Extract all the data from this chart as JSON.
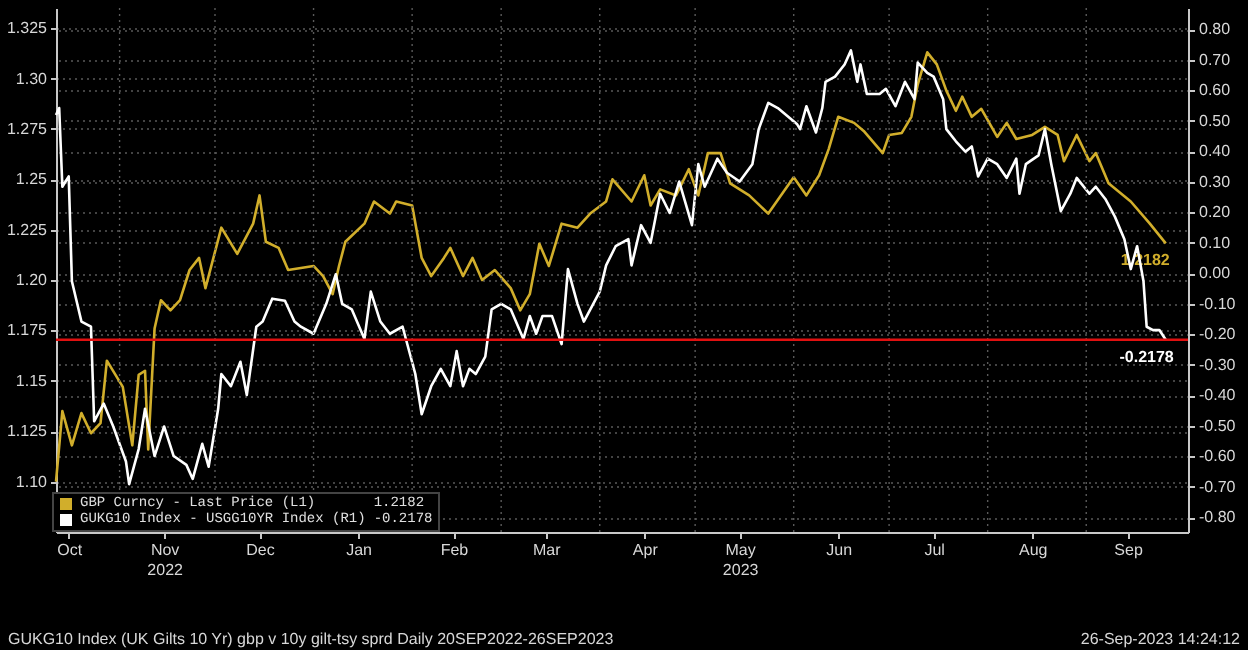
{
  "chart_data": {
    "type": "line",
    "xlim": [
      "2022-10-12",
      "2023-10-03"
    ],
    "xticks": [
      {
        "value": "2022-10-16",
        "label": "Oct"
      },
      {
        "value": "2022-11-01",
        "label": null
      },
      {
        "value": "2022-11-15",
        "label": "Nov\n2022"
      },
      {
        "value": "2022-12-01",
        "label": null
      },
      {
        "value": "2022-12-15",
        "label": "Dec"
      },
      {
        "value": "2023-01-01",
        "label": null
      },
      {
        "value": "2023-01-15",
        "label": "Jan"
      },
      {
        "value": "2023-02-01",
        "label": null
      },
      {
        "value": "2023-02-14",
        "label": "Feb"
      },
      {
        "value": "2023-03-01",
        "label": null
      },
      {
        "value": "2023-03-15",
        "label": "Mar"
      },
      {
        "value": "2023-04-01",
        "label": null
      },
      {
        "value": "2023-04-15",
        "label": "Apr"
      },
      {
        "value": "2023-05-01",
        "label": null
      },
      {
        "value": "2023-05-15",
        "label": "May\n2023"
      },
      {
        "value": "2023-06-01",
        "label": null
      },
      {
        "value": "2023-06-15",
        "label": "Jun"
      },
      {
        "value": "2023-07-01",
        "label": null
      },
      {
        "value": "2023-07-15",
        "label": "Jul"
      },
      {
        "value": "2023-08-01",
        "label": null
      },
      {
        "value": "2023-08-15",
        "label": "Aug"
      },
      {
        "value": "2023-09-01",
        "label": null
      },
      {
        "value": "2023-09-14",
        "label": "Sep"
      }
    ],
    "ylim": [
      1.075,
      1.335
    ],
    "yticks": [
      {
        "value": 1.1,
        "label": "1.10"
      },
      1.125,
      1.15,
      1.175,
      {
        "value": 1.2,
        "label": "1.20"
      },
      1.225,
      1.25,
      1.275,
      {
        "value": 1.3,
        "label": "1.30"
      },
      1.325
    ],
    "y2lim": [
      -0.848,
      0.87
    ],
    "y2ticks": [
      {
        "value": -0.8,
        "label": "-0.80"
      },
      {
        "value": -0.7,
        "label": "-0.70"
      },
      {
        "value": -0.6,
        "label": "-0.60"
      },
      {
        "value": -0.5,
        "label": "-0.50"
      },
      {
        "value": -0.4,
        "label": "-0.40"
      },
      {
        "value": -0.3,
        "label": "-0.30"
      },
      {
        "value": -0.2,
        "label": "-0.20"
      },
      {
        "value": -0.1,
        "label": "-0.10"
      },
      {
        "value": 0,
        "label": "0.00"
      },
      {
        "value": 0.1,
        "label": "0.10"
      },
      {
        "value": 0.2,
        "label": "0.20"
      },
      {
        "value": 0.3,
        "label": "0.30"
      },
      {
        "value": 0.4,
        "label": "0.40"
      },
      {
        "value": 0.5,
        "label": "0.50"
      },
      {
        "value": 0.6,
        "label": "0.60"
      },
      {
        "value": 0.7,
        "label": "0.70"
      },
      {
        "value": 0.8,
        "label": "0.80"
      }
    ],
    "grid": true,
    "legend": "bottom left",
    "ref_lines": [
      {
        "axis": "y2",
        "value": -0.2178,
        "color": "#e01010"
      }
    ],
    "annotations": [
      "GUKG10 Index (UK Gilts 10 Yr) gbp v 10y gilt-tsy sprd  Daily 20SEP2022-26SEP2023",
      "26-Sep-2023 14:24:12"
    ],
    "series": [
      {
        "name": "GBP Curncy - Last Price (L1)",
        "color": "#d1ae2b",
        "axis": "y",
        "x": [
          "2022-10-12",
          "2022-10-14",
          "2022-10-17",
          "2022-10-20",
          "2022-10-23",
          "2022-10-26",
          "2022-10-28",
          "2022-11-02",
          "2022-11-05",
          "2022-11-07",
          "2022-11-09",
          "2022-11-10",
          "2022-11-12",
          "2022-11-14",
          "2022-11-17",
          "2022-11-20",
          "2022-11-23",
          "2022-11-26",
          "2022-11-28",
          "2022-12-03",
          "2022-12-08",
          "2022-12-13",
          "2022-12-15",
          "2022-12-17",
          "2022-12-21",
          "2022-12-24",
          "2023-01-01",
          "2023-01-04",
          "2023-01-07",
          "2023-01-09",
          "2023-01-11",
          "2023-01-17",
          "2023-01-20",
          "2023-01-25",
          "2023-01-27",
          "2023-02-01",
          "2023-02-04",
          "2023-02-07",
          "2023-02-11",
          "2023-02-13",
          "2023-02-17",
          "2023-02-20",
          "2023-02-23",
          "2023-02-27",
          "2023-03-04",
          "2023-03-07",
          "2023-03-10",
          "2023-03-13",
          "2023-03-16",
          "2023-03-20",
          "2023-03-25",
          "2023-03-29",
          "2023-04-03",
          "2023-04-05",
          "2023-04-11",
          "2023-04-15",
          "2023-04-17",
          "2023-04-20",
          "2023-04-25",
          "2023-04-29",
          "2023-05-02",
          "2023-05-05",
          "2023-05-09",
          "2023-05-12",
          "2023-05-18",
          "2023-05-24",
          "2023-06-01",
          "2023-06-05",
          "2023-06-09",
          "2023-06-12",
          "2023-06-15",
          "2023-06-20",
          "2023-06-23",
          "2023-06-29",
          "2023-07-01",
          "2023-07-05",
          "2023-07-08",
          "2023-07-10",
          "2023-07-13",
          "2023-07-16",
          "2023-07-19",
          "2023-07-22",
          "2023-07-24",
          "2023-07-27",
          "2023-07-30",
          "2023-08-04",
          "2023-08-07",
          "2023-08-10",
          "2023-08-15",
          "2023-08-19",
          "2023-08-23",
          "2023-08-25",
          "2023-08-29",
          "2023-09-02",
          "2023-09-04",
          "2023-09-08",
          "2023-09-15",
          "2023-09-21",
          "2023-09-26"
        ],
        "values": [
          1.1,
          1.135,
          1.118,
          1.134,
          1.124,
          1.129,
          1.16,
          1.147,
          1.118,
          1.153,
          1.155,
          1.116,
          1.176,
          1.19,
          1.185,
          1.19,
          1.205,
          1.211,
          1.196,
          1.226,
          1.213,
          1.228,
          1.242,
          1.219,
          1.216,
          1.205,
          1.207,
          1.202,
          1.193,
          1.207,
          1.219,
          1.228,
          1.239,
          1.233,
          1.239,
          1.237,
          1.211,
          1.202,
          1.211,
          1.216,
          1.202,
          1.211,
          1.2,
          1.205,
          1.196,
          1.185,
          1.193,
          1.218,
          1.207,
          1.228,
          1.226,
          1.233,
          1.239,
          1.25,
          1.239,
          1.252,
          1.237,
          1.245,
          1.242,
          1.255,
          1.242,
          1.263,
          1.263,
          1.248,
          1.242,
          1.233,
          1.251,
          1.242,
          1.252,
          1.265,
          1.281,
          1.278,
          1.274,
          1.263,
          1.272,
          1.273,
          1.281,
          1.297,
          1.313,
          1.307,
          1.294,
          1.284,
          1.291,
          1.281,
          1.285,
          1.271,
          1.278,
          1.27,
          1.272,
          1.276,
          1.272,
          1.259,
          1.272,
          1.259,
          1.263,
          1.248,
          1.239,
          1.228,
          1.2182
        ],
        "value_labels": [
          null,
          null,
          null,
          null,
          null,
          null,
          null,
          null,
          null,
          null,
          null,
          null,
          null,
          null,
          null,
          null,
          null,
          null,
          null,
          null,
          null,
          null,
          null,
          null,
          null,
          null,
          null,
          null,
          null,
          null,
          null,
          null,
          null,
          null,
          null,
          null,
          null,
          null,
          null,
          null,
          null,
          null,
          null,
          null,
          null,
          null,
          null,
          null,
          null,
          null,
          null,
          null,
          null,
          null,
          null,
          null,
          null,
          null,
          null,
          null,
          null,
          null,
          null,
          null,
          null,
          null,
          null,
          null,
          null,
          null,
          null,
          null,
          null,
          null,
          null,
          null,
          null,
          null,
          null,
          null,
          null,
          null,
          null,
          null,
          null,
          null,
          null,
          null,
          null,
          null,
          null,
          null,
          null,
          null,
          null,
          null,
          null,
          null,
          "1.2182"
        ]
      },
      {
        "name": "GUKG10 Index - USGG10YR Index (R1)",
        "color": "#ffffff",
        "axis": "y2",
        "x": [
          "2022-10-12",
          "2022-10-13",
          "2022-10-14",
          "2022-10-16",
          "2022-10-17",
          "2022-10-20",
          "2022-10-23",
          "2022-10-24",
          "2022-10-27",
          "2022-10-30",
          "2022-11-03",
          "2022-11-04",
          "2022-11-07",
          "2022-11-09",
          "2022-11-12",
          "2022-11-15",
          "2022-11-18",
          "2022-11-22",
          "2022-11-24",
          "2022-11-27",
          "2022-11-29",
          "2022-12-02",
          "2022-12-03",
          "2022-12-06",
          "2022-12-09",
          "2022-12-11",
          "2022-12-14",
          "2022-12-16",
          "2022-12-19",
          "2022-12-23",
          "2022-12-26",
          "2022-12-28",
          "2023-01-01",
          "2023-01-05",
          "2023-01-08",
          "2023-01-10",
          "2023-01-13",
          "2023-01-17",
          "2023-01-19",
          "2023-01-22",
          "2023-01-25",
          "2023-01-29",
          "2023-02-02",
          "2023-02-04",
          "2023-02-07",
          "2023-02-10",
          "2023-02-13",
          "2023-02-15",
          "2023-02-17",
          "2023-02-19",
          "2023-02-21",
          "2023-02-24",
          "2023-02-26",
          "2023-03-01",
          "2023-03-04",
          "2023-03-08",
          "2023-03-10",
          "2023-03-12",
          "2023-03-14",
          "2023-03-17",
          "2023-03-20",
          "2023-03-22",
          "2023-03-25",
          "2023-03-27",
          "2023-04-01",
          "2023-04-03",
          "2023-04-06",
          "2023-04-10",
          "2023-04-11",
          "2023-04-14",
          "2023-04-17",
          "2023-04-20",
          "2023-04-23",
          "2023-04-26",
          "2023-04-30",
          "2023-05-02",
          "2023-05-04",
          "2023-05-08",
          "2023-05-11",
          "2023-05-15",
          "2023-05-19",
          "2023-05-21",
          "2023-05-24",
          "2023-05-27",
          "2023-06-02",
          "2023-06-03",
          "2023-06-05",
          "2023-06-08",
          "2023-06-10",
          "2023-06-11",
          "2023-06-14",
          "2023-06-17",
          "2023-06-19",
          "2023-06-21",
          "2023-06-22",
          "2023-06-24",
          "2023-06-28",
          "2023-06-30",
          "2023-07-03",
          "2023-07-06",
          "2023-07-09",
          "2023-07-10",
          "2023-07-13",
          "2023-07-15",
          "2023-07-18",
          "2023-07-19",
          "2023-07-22",
          "2023-07-25",
          "2023-07-27",
          "2023-07-29",
          "2023-08-01",
          "2023-08-04",
          "2023-08-07",
          "2023-08-10",
          "2023-08-11",
          "2023-08-13",
          "2023-08-17",
          "2023-08-19",
          "2023-08-21",
          "2023-08-24",
          "2023-08-27",
          "2023-08-29",
          "2023-09-02",
          "2023-09-04",
          "2023-09-07",
          "2023-09-10",
          "2023-09-13",
          "2023-09-15",
          "2023-09-17",
          "2023-09-19",
          "2023-09-20",
          "2023-09-22",
          "2023-09-24",
          "2023-09-26"
        ],
        "values": [
          0.519,
          0.542,
          0.284,
          0.318,
          -0.026,
          -0.158,
          -0.175,
          -0.485,
          -0.427,
          -0.502,
          -0.617,
          -0.691,
          -0.576,
          -0.444,
          -0.599,
          -0.502,
          -0.599,
          -0.628,
          -0.674,
          -0.559,
          -0.634,
          -0.444,
          -0.33,
          -0.37,
          -0.29,
          -0.399,
          -0.175,
          -0.158,
          -0.083,
          -0.09,
          -0.158,
          -0.175,
          -0.198,
          -0.1,
          -0.003,
          -0.1,
          -0.118,
          -0.215,
          -0.06,
          -0.158,
          -0.198,
          -0.175,
          -0.33,
          -0.462,
          -0.37,
          -0.313,
          -0.37,
          -0.255,
          -0.37,
          -0.313,
          -0.33,
          -0.273,
          -0.118,
          -0.1,
          -0.118,
          -0.215,
          -0.14,
          -0.198,
          -0.14,
          -0.14,
          -0.232,
          0.014,
          -0.1,
          -0.158,
          -0.06,
          0.026,
          0.089,
          0.112,
          0.026,
          0.158,
          0.1,
          0.261,
          0.198,
          0.301,
          0.158,
          0.358,
          0.284,
          0.376,
          0.33,
          0.301,
          0.358,
          0.473,
          0.559,
          0.542,
          0.49,
          0.473,
          0.548,
          0.462,
          0.542,
          0.628,
          0.645,
          0.685,
          0.731,
          0.628,
          0.685,
          0.588,
          0.588,
          0.605,
          0.548,
          0.628,
          0.571,
          0.691,
          0.657,
          0.645,
          0.571,
          0.473,
          0.433,
          0.399,
          0.416,
          0.318,
          0.376,
          0.358,
          0.313,
          0.376,
          0.261,
          0.358,
          0.387,
          0.473,
          0.358,
          0.204,
          0.261,
          0.313,
          0.261,
          0.284,
          0.244,
          0.186,
          0.112,
          0.014,
          0.089,
          -0.026,
          -0.175,
          -0.186,
          -0.186,
          -0.2178
        ],
        "value_labels": [
          null,
          null,
          null,
          null,
          null,
          null,
          null,
          null,
          null,
          null,
          null,
          null,
          null,
          null,
          null,
          null,
          null,
          null,
          null,
          null,
          null,
          null,
          null,
          null,
          null,
          null,
          null,
          null,
          null,
          null,
          null,
          null,
          null,
          null,
          null,
          null,
          null,
          null,
          null,
          null,
          null,
          null,
          null,
          null,
          null,
          null,
          null,
          null,
          null,
          null,
          null,
          null,
          null,
          null,
          null,
          null,
          null,
          null,
          null,
          null,
          null,
          null,
          null,
          null,
          null,
          null,
          null,
          null,
          null,
          null,
          null,
          null,
          null,
          null,
          null,
          null,
          null,
          null,
          null,
          null,
          null,
          null,
          null,
          null,
          null,
          null,
          null,
          null,
          null,
          null,
          null,
          null,
          null,
          null,
          null,
          null,
          null,
          null,
          null,
          null,
          null,
          null,
          null,
          null,
          null,
          null,
          null,
          null,
          null,
          null,
          null,
          null,
          null,
          null,
          null,
          null,
          null,
          null,
          null,
          null,
          null,
          null,
          null,
          null,
          null,
          null,
          null,
          null,
          null,
          null,
          null,
          null,
          null,
          "-0.2178"
        ]
      }
    ]
  }
}
